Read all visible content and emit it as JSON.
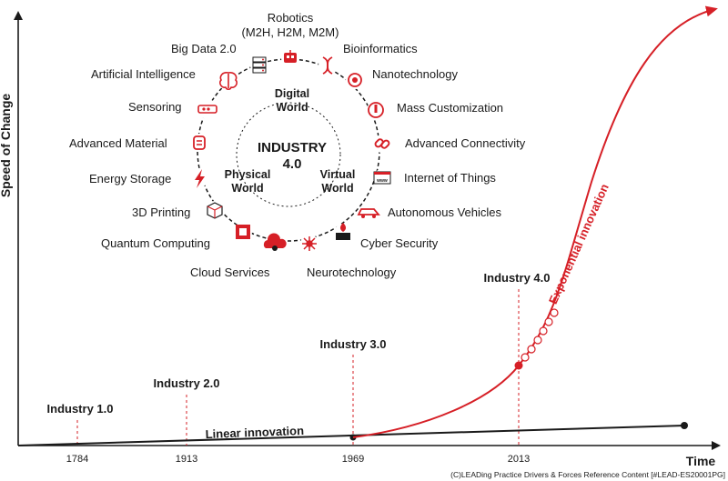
{
  "axes": {
    "y_label": "Speed of Change",
    "x_label": "Time",
    "years": [
      "1784",
      "1913",
      "1969",
      "2013"
    ]
  },
  "milestones": [
    {
      "label": "Industry 1.0"
    },
    {
      "label": "Industry 2.0"
    },
    {
      "label": "Industry 3.0"
    },
    {
      "label": "Industry 4.0"
    }
  ],
  "curves": {
    "linear": "Linear innovation",
    "exponential": "Exponential innovation"
  },
  "center": {
    "line1": "INDUSTRY",
    "line2": "4.0",
    "digital_1": "Digital",
    "digital_2": "World",
    "physical_1": "Physical",
    "physical_2": "World",
    "virtual_1": "Virtual",
    "virtual_2": "World"
  },
  "technologies": [
    {
      "label": "Robotics",
      "label2": "(M2H, H2M, M2M)",
      "icon": "robot-icon"
    },
    {
      "label": "Bioinformatics",
      "icon": "dna-icon"
    },
    {
      "label": "Nanotechnology",
      "icon": "nano-icon"
    },
    {
      "label": "Mass Customization",
      "icon": "customization-icon"
    },
    {
      "label": "Advanced Connectivity",
      "icon": "chain-link-icon"
    },
    {
      "label": "Internet of Things",
      "icon": "www-icon"
    },
    {
      "label": "Autonomous Vehicles",
      "icon": "car-icon"
    },
    {
      "label": "Cyber Security",
      "icon": "firewall-icon"
    },
    {
      "label": "Neurotechnology",
      "icon": "neuron-icon"
    },
    {
      "label": "Cloud Services",
      "icon": "cloud-icon"
    },
    {
      "label": "Quantum Computing",
      "icon": "quantum-chip-icon"
    },
    {
      "label": "3D Printing",
      "icon": "cube-icon"
    },
    {
      "label": "Energy Storage",
      "icon": "lightning-icon"
    },
    {
      "label": "Advanced Material",
      "icon": "material-icon"
    },
    {
      "label": "Sensoring",
      "icon": "sensor-icon"
    },
    {
      "label": "Artificial Intelligence",
      "icon": "brain-icon"
    },
    {
      "label": "Big Data 2.0",
      "icon": "server-icon"
    }
  ],
  "footer": "(C)LEADing Practice Drivers & Forces Reference Content [#LEAD-ES20001PG]",
  "colors": {
    "accent": "#d61f26",
    "ink": "#1a1a1a"
  }
}
